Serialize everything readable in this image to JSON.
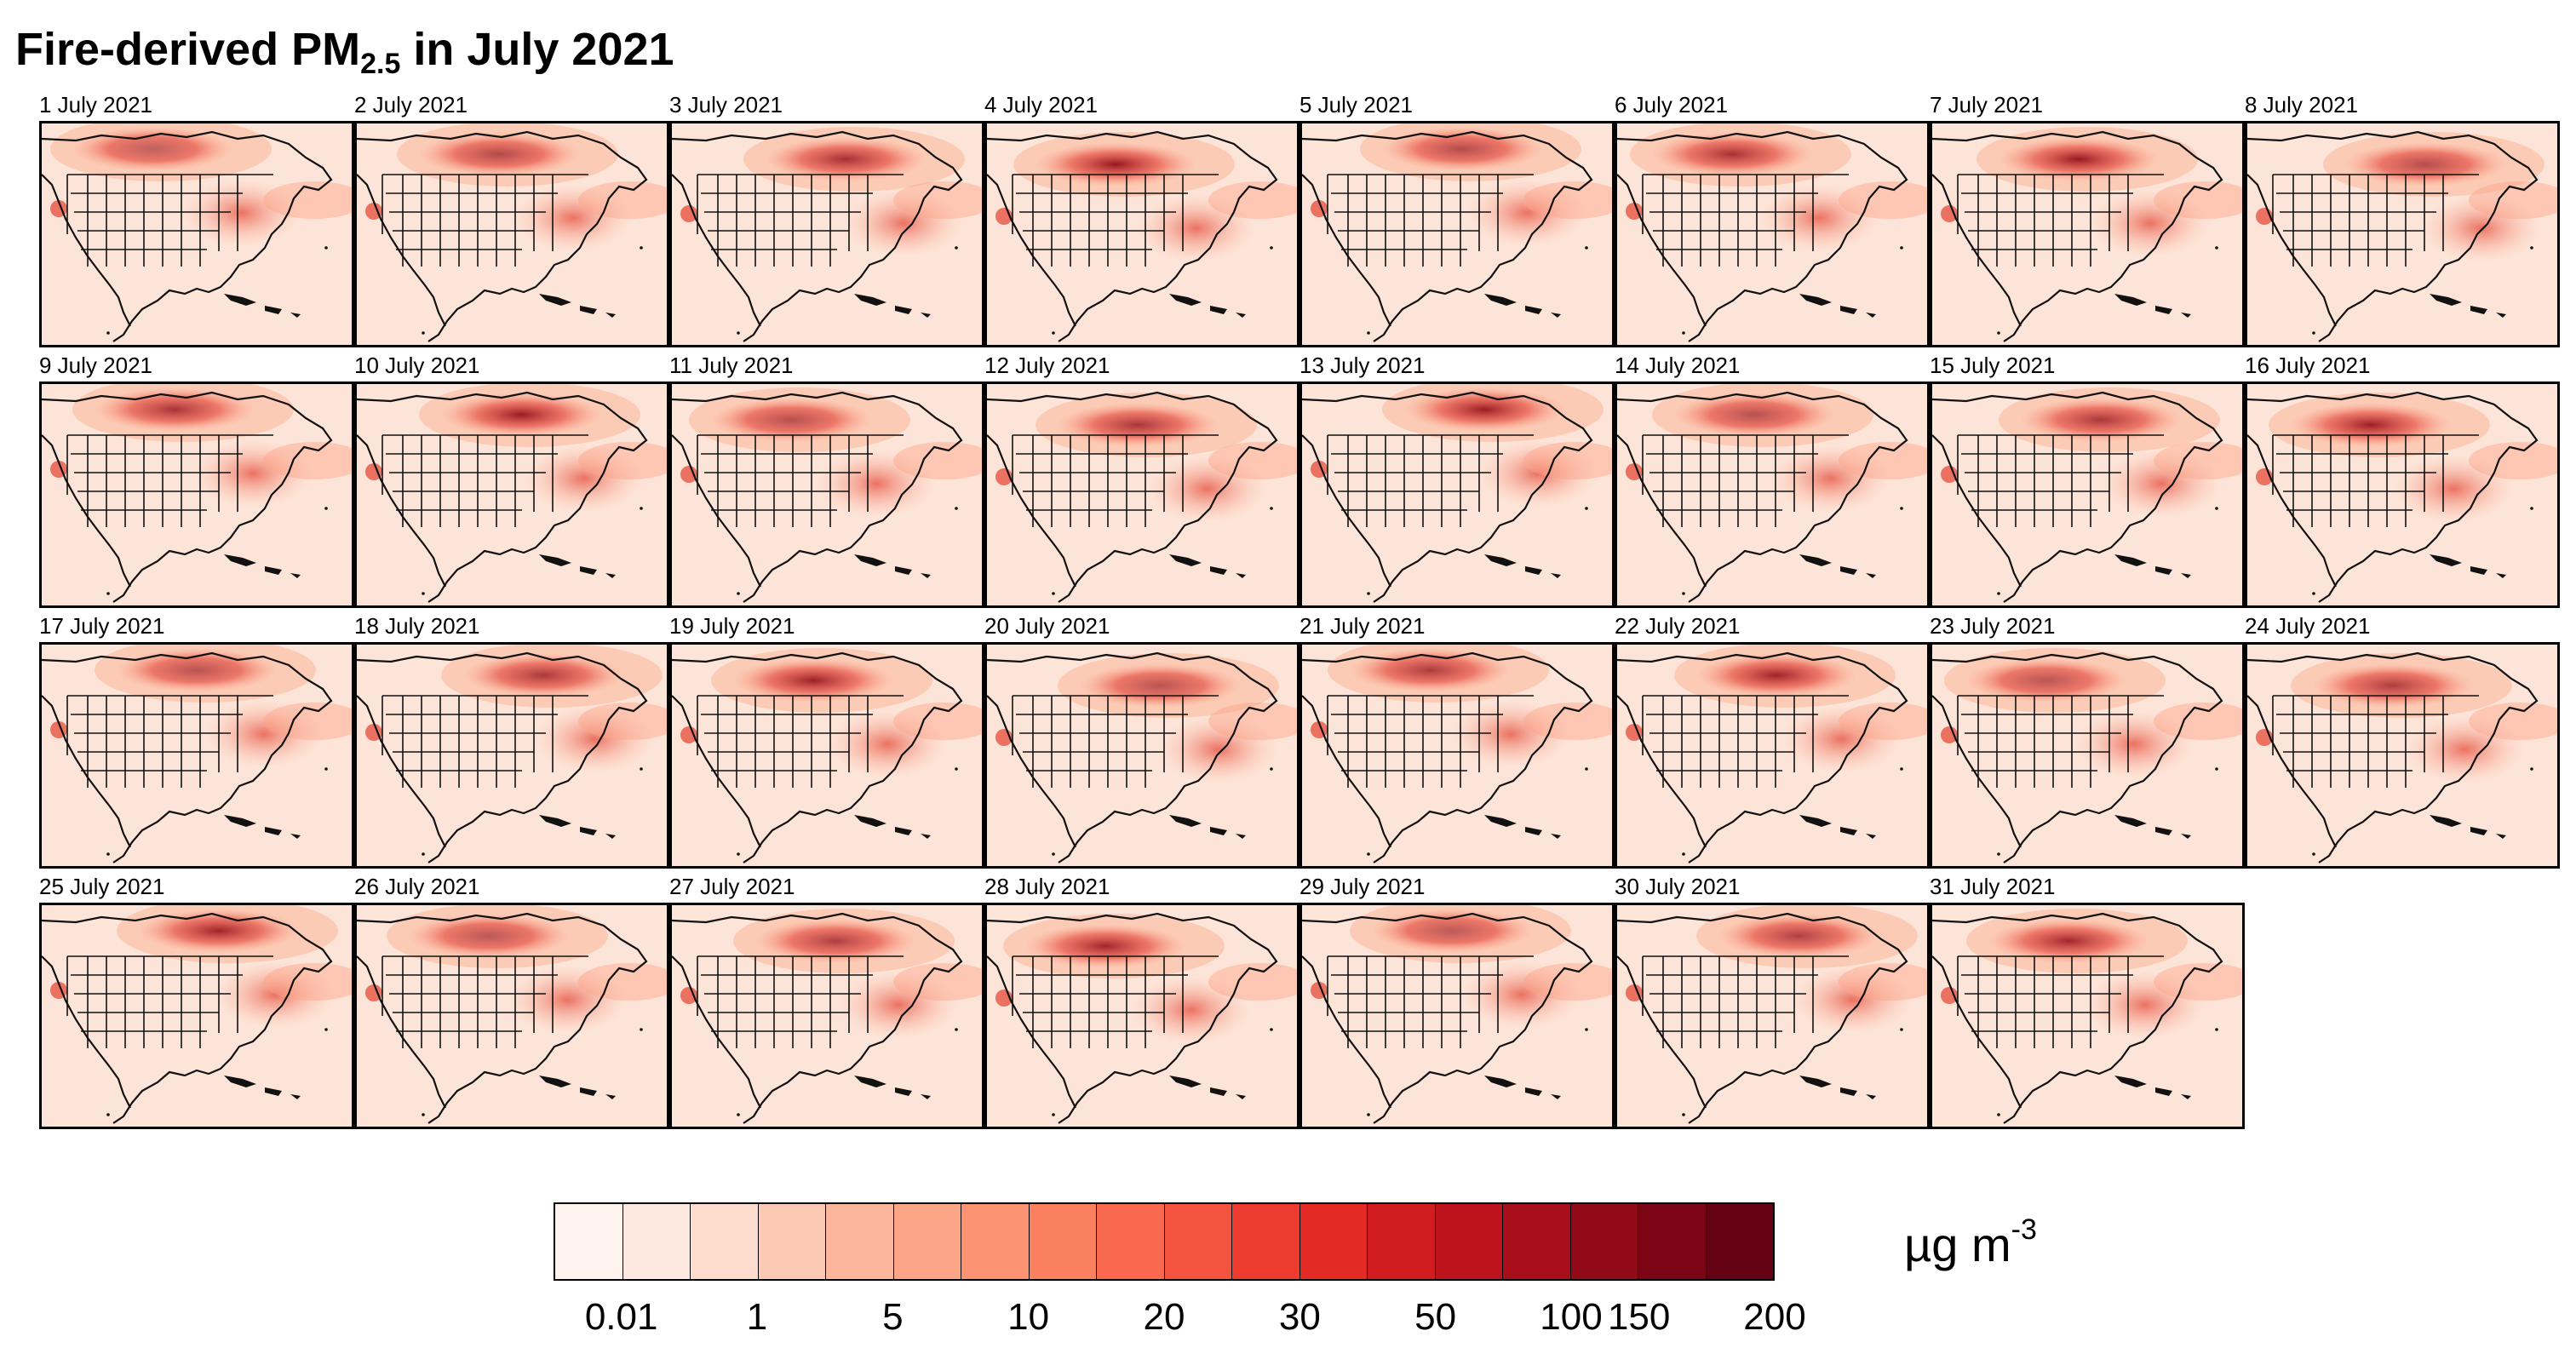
{
  "figure": {
    "title": "Fire-derived PM",
    "title_subscript": "2.5",
    "title_suffix": " in July 2021",
    "panels": [
      {
        "label": "1 July 2021"
      },
      {
        "label": "2 July 2021"
      },
      {
        "label": "3 July 2021"
      },
      {
        "label": "4 July 2021"
      },
      {
        "label": "5 July 2021"
      },
      {
        "label": "6 July 2021"
      },
      {
        "label": "7 July 2021"
      },
      {
        "label": "8 July 2021"
      },
      {
        "label": "9 July 2021"
      },
      {
        "label": "10 July 2021"
      },
      {
        "label": "11 July 2021"
      },
      {
        "label": "12 July 2021"
      },
      {
        "label": "13 July 2021"
      },
      {
        "label": "14 July 2021"
      },
      {
        "label": "15 July 2021"
      },
      {
        "label": "16 July 2021"
      },
      {
        "label": "17 July 2021"
      },
      {
        "label": "18 July 2021"
      },
      {
        "label": "19 July 2021"
      },
      {
        "label": "20 July 2021"
      },
      {
        "label": "21 July 2021"
      },
      {
        "label": "22 July 2021"
      },
      {
        "label": "23 July 2021"
      },
      {
        "label": "24 July 2021"
      },
      {
        "label": "25 July 2021"
      },
      {
        "label": "26 July 2021"
      },
      {
        "label": "27 July 2021"
      },
      {
        "label": "28 July 2021"
      },
      {
        "label": "29 July 2021"
      },
      {
        "label": "30 July 2021"
      },
      {
        "label": "31 July 2021"
      }
    ]
  },
  "colorbar": {
    "colors": [
      "#fff3ee",
      "#fee9e0",
      "#fddccd",
      "#fcc9b4",
      "#fcb69b",
      "#fca587",
      "#fb9373",
      "#fb8060",
      "#f8694f",
      "#f4533f",
      "#ee3b2f",
      "#e32a25",
      "#d11d20",
      "#bc131d",
      "#a80f1a",
      "#920a17",
      "#7b0515",
      "#640112"
    ],
    "tick_labels": [
      "0.01",
      "1",
      "5",
      "10",
      "20",
      "30",
      "50",
      "100",
      "150",
      "200"
    ],
    "tick_boundary_index": [
      1,
      3,
      5,
      7,
      9,
      11,
      13,
      15,
      16,
      18
    ],
    "units": "µg m",
    "units_superscript": "-3"
  }
}
